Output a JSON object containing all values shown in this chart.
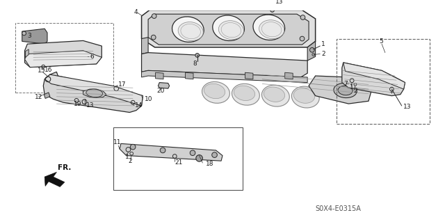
{
  "part_code": "S0X4-E0315A",
  "bg_color": "#ffffff",
  "line_color": "#2a2a2a",
  "text_color": "#1a1a1a",
  "fig_width": 6.4,
  "fig_height": 3.19,
  "dpi": 100
}
